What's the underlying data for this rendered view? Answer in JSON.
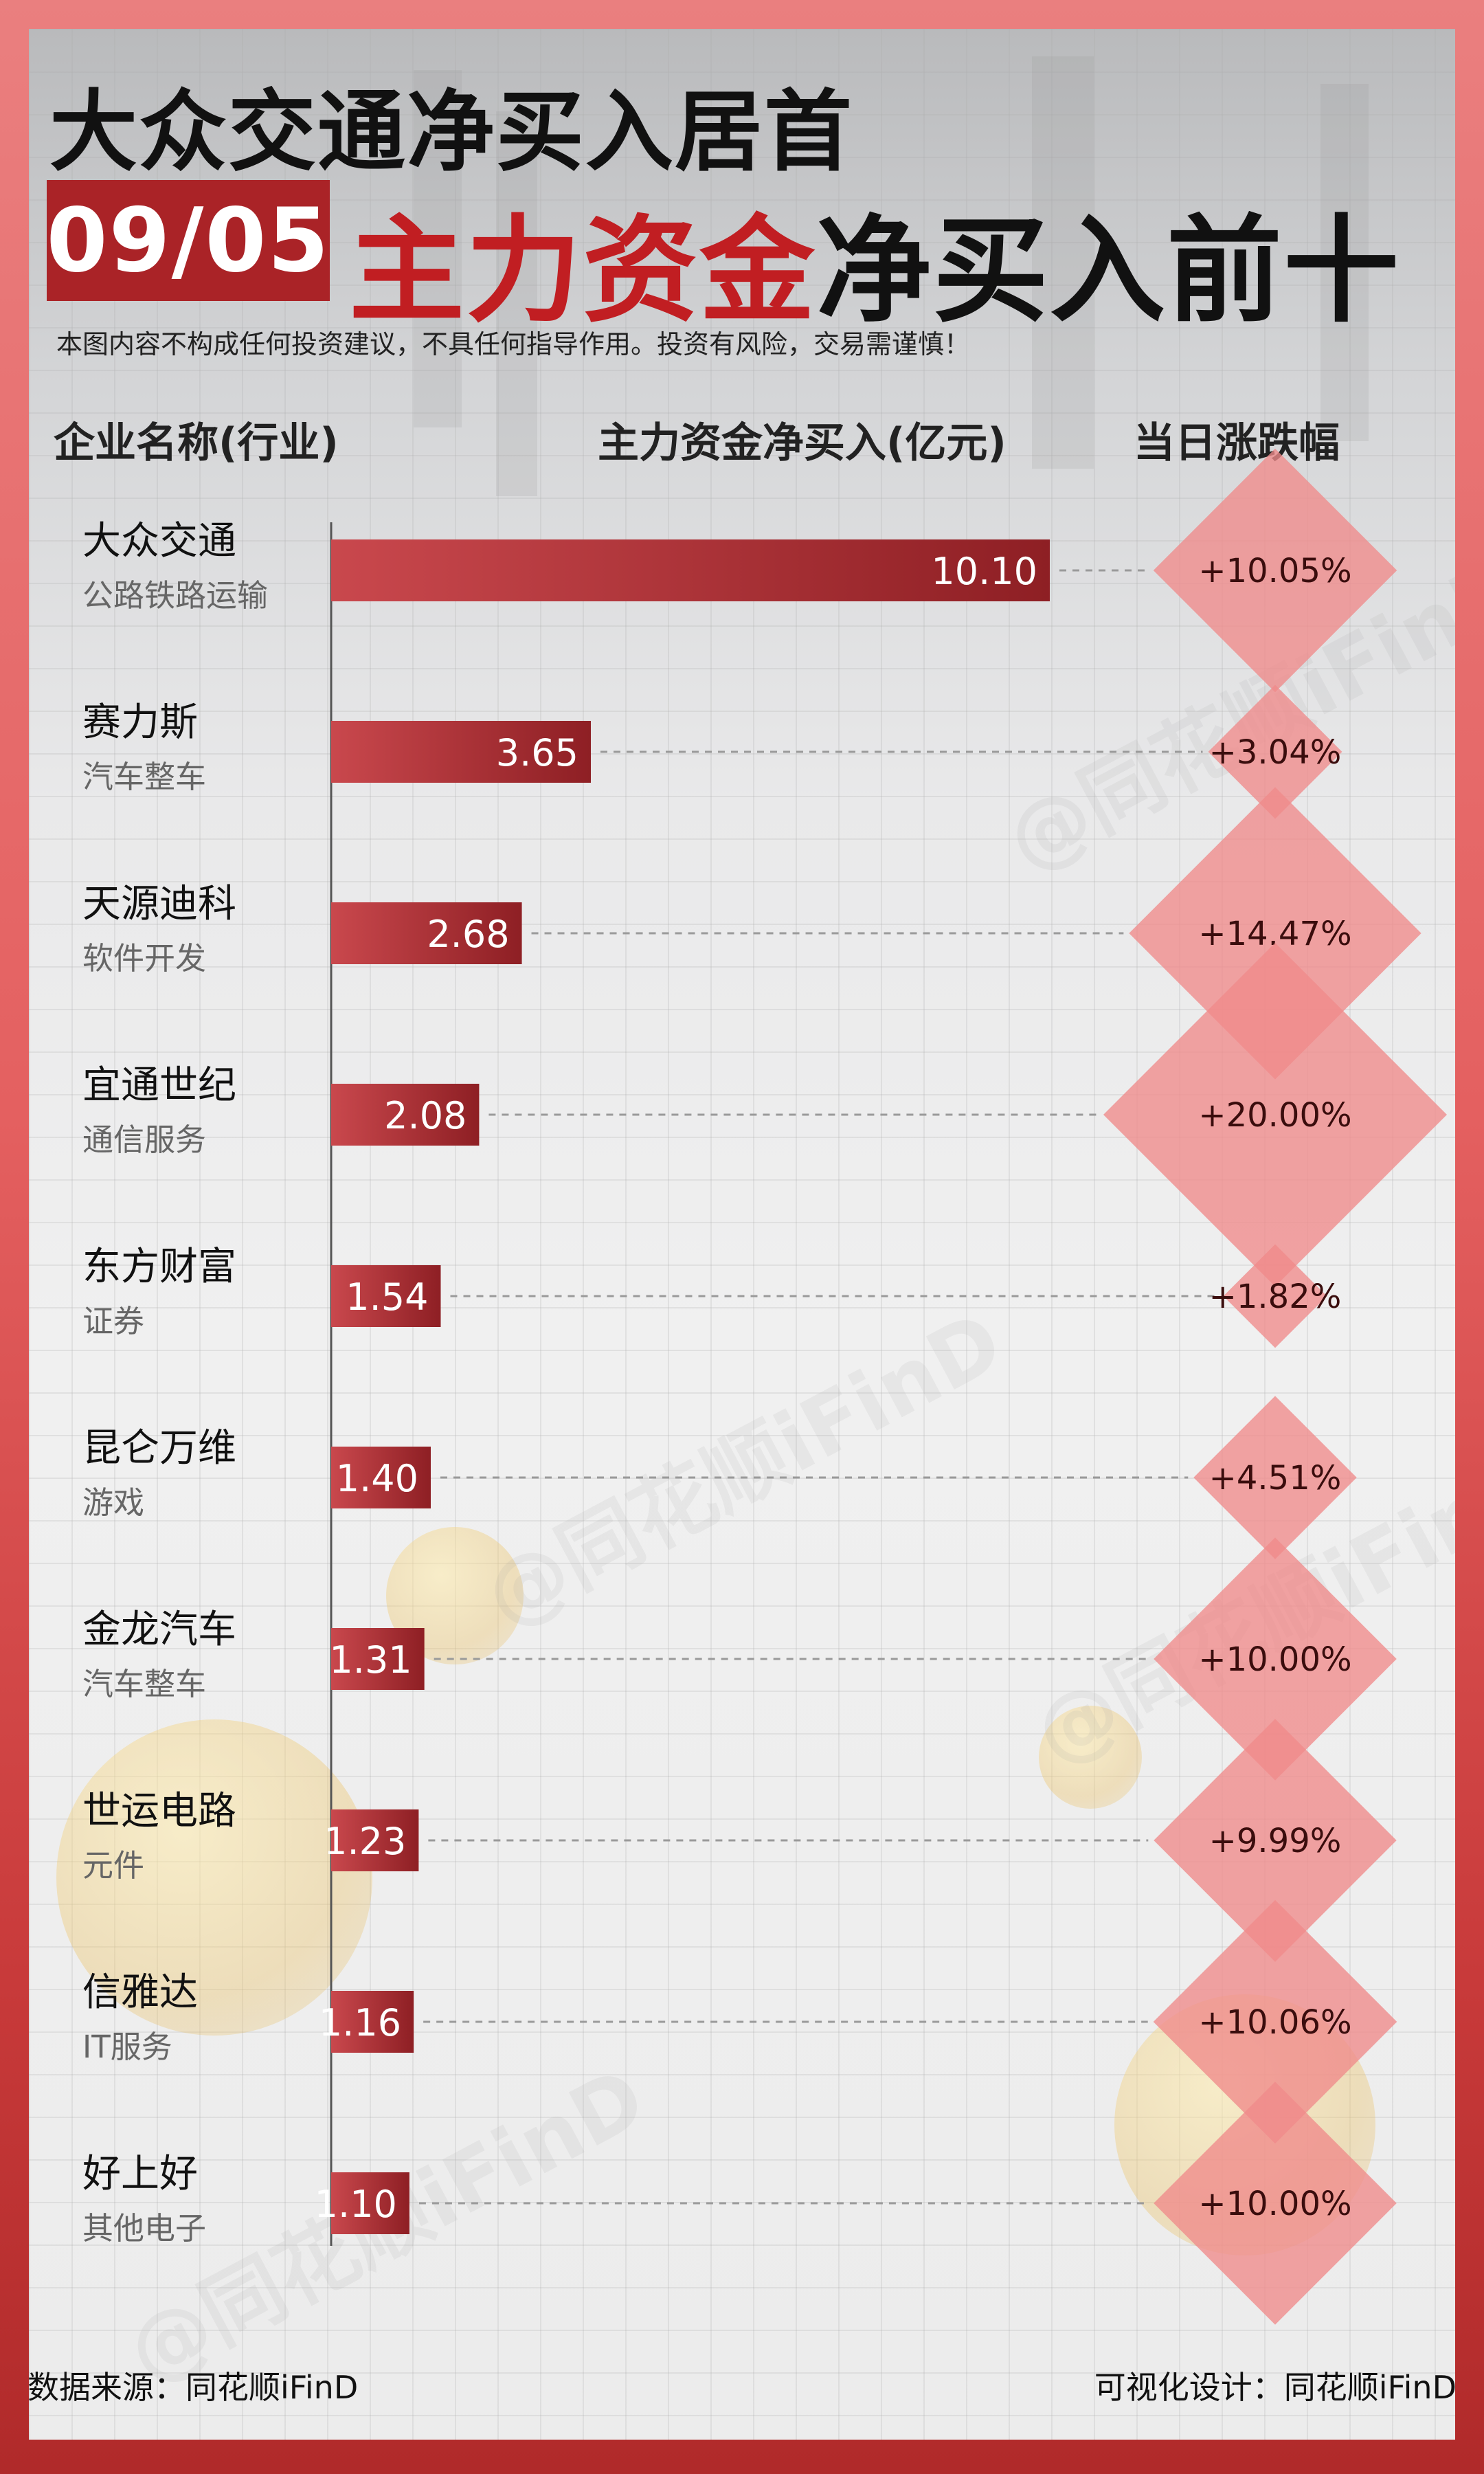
{
  "header": {
    "title": "大众交通净买入居首",
    "date": "09/05",
    "subtitle_red": "主力资金",
    "subtitle_dark": "净买入前十",
    "disclaimer": "本图内容不构成任何投资建议，不具任何指导作用。投资有风险，交易需谨慎！"
  },
  "columns": {
    "name": "企业名称(行业)",
    "net_buy": "主力资金净买入(亿元)",
    "change": "当日涨跌幅"
  },
  "chart_data": {
    "type": "bar",
    "orientation": "horizontal",
    "categories": [
      "大众交通",
      "赛力斯",
      "天源迪科",
      "宜通世纪",
      "东方财富",
      "昆仑万维",
      "金龙汽车",
      "世运电路",
      "信雅达",
      "好上好"
    ],
    "industries": [
      "公路铁路运输",
      "汽车整车",
      "软件开发",
      "通信服务",
      "证券",
      "游戏",
      "汽车整车",
      "元件",
      "IT服务",
      "其他电子"
    ],
    "values": [
      10.1,
      3.65,
      2.68,
      2.08,
      1.54,
      1.4,
      1.31,
      1.23,
      1.16,
      1.1
    ],
    "value_labels": [
      "10.10",
      "3.65",
      "2.68",
      "2.08",
      "1.54",
      "1.40",
      "1.31",
      "1.23",
      "1.16",
      "1.10"
    ],
    "pct_change": [
      10.05,
      3.04,
      14.47,
      20.0,
      1.82,
      4.51,
      10.0,
      9.99,
      10.06,
      10.0
    ],
    "pct_labels": [
      "+10.05%",
      "+3.04%",
      "+14.47%",
      "+20.00%",
      "+1.82%",
      "+4.51%",
      "+10.00%",
      "+9.99%",
      "+10.06%",
      "+10.00%"
    ],
    "xlim": [
      0,
      10.1
    ],
    "bar_color": "#a72a2e",
    "diamond_color": "#f08a8a"
  },
  "footer": {
    "source": "数据来源：同花顺iFinD",
    "design": "可视化设计：同花顺iFinD"
  }
}
